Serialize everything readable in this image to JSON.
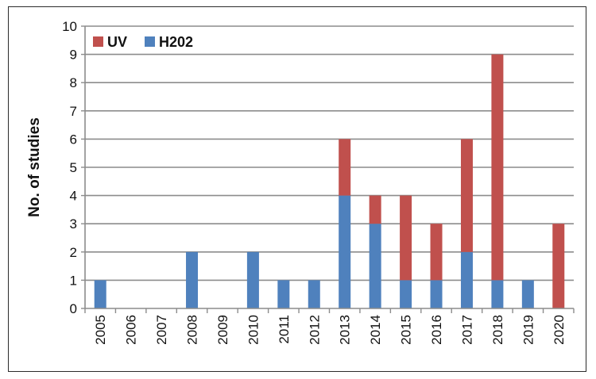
{
  "chart_data": {
    "type": "bar",
    "stacked": true,
    "title": "",
    "xlabel": "",
    "ylabel": "No. of studies",
    "ylim": [
      0,
      10
    ],
    "yticks": [
      0,
      1,
      2,
      3,
      4,
      5,
      6,
      7,
      8,
      9,
      10
    ],
    "grid": true,
    "legend_position": "top-left",
    "categories": [
      "2005",
      "2006",
      "2007",
      "2008",
      "2009",
      "2010",
      "2011",
      "2012",
      "2013",
      "2014",
      "2015",
      "2016",
      "2017",
      "2018",
      "2019",
      "2020"
    ],
    "series": [
      {
        "name": "H202",
        "color": "#4f81bd",
        "values": [
          1,
          0,
          0,
          2,
          0,
          2,
          1,
          1,
          4,
          3,
          1,
          1,
          2,
          1,
          1,
          0
        ]
      },
      {
        "name": "UV",
        "color": "#c0504d",
        "values": [
          0,
          0,
          0,
          0,
          0,
          0,
          0,
          0,
          2,
          1,
          3,
          2,
          4,
          8,
          0,
          3
        ]
      }
    ]
  }
}
